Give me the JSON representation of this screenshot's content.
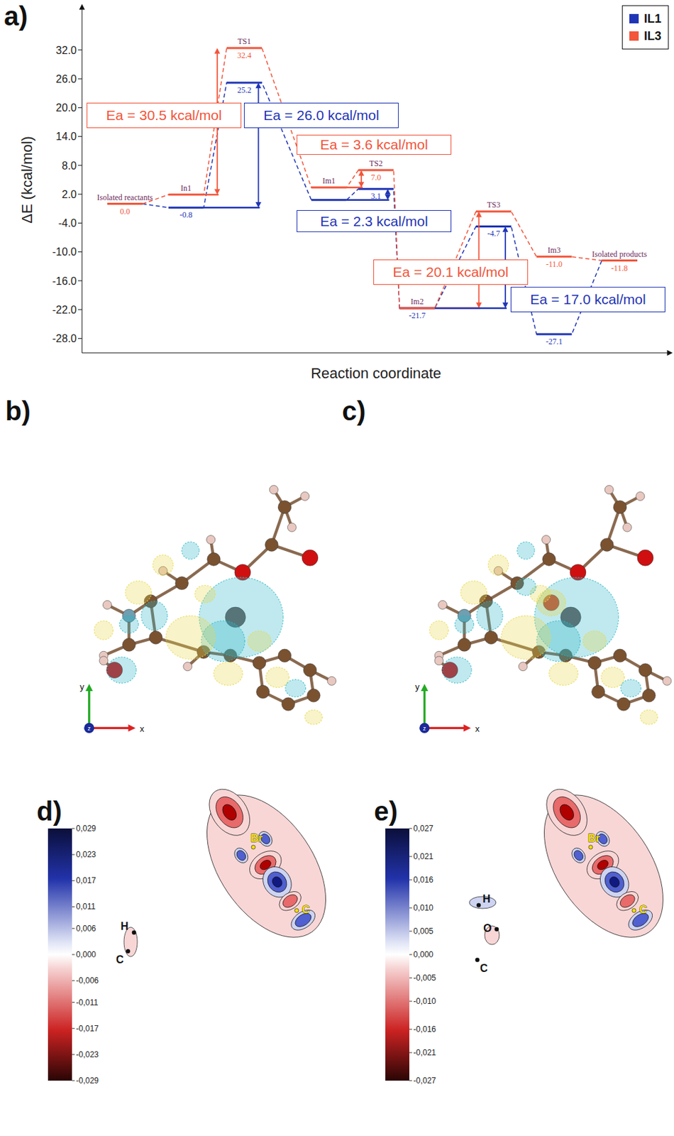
{
  "panel_label": "a)",
  "chart_data": {
    "type": "line",
    "categories": [
      "Isolated reactants",
      "In1",
      "TS1",
      "Im1",
      "TS2",
      "Im2",
      "TS3",
      "Im3",
      "Isolated products"
    ],
    "series": [
      {
        "name": "IL1",
        "color": "#1f35b5",
        "values": [
          0.0,
          -0.8,
          25.2,
          0.8,
          3.1,
          -21.7,
          -4.7,
          -27.1,
          -11.8
        ],
        "value_labels": [
          null,
          "-0.8",
          "25.2",
          null,
          "3.1",
          "-21.7",
          "-4.7",
          "-27.1",
          null
        ]
      },
      {
        "name": "IL3",
        "color": "#f2553a",
        "values": [
          0.0,
          1.9,
          32.4,
          3.4,
          7.0,
          -21.7,
          -1.6,
          -11.0,
          -11.8
        ],
        "value_labels": [
          "0.0",
          null,
          "32.4",
          null,
          "7.0",
          null,
          null,
          "-11.0",
          "-11.8"
        ]
      }
    ],
    "xlabel": "Reaction coordinate",
    "ylabel": "ΔE (kcal/mol)",
    "ylim": [
      -31,
      41
    ],
    "yticks": [
      {
        "value": -28,
        "label": "-28.0"
      },
      {
        "value": -22,
        "label": "-22.0"
      },
      {
        "value": -16,
        "label": "-16.0"
      },
      {
        "value": -10,
        "label": "-10.0"
      },
      {
        "value": -4,
        "label": "-4.0"
      },
      {
        "value": 2,
        "label": "2.0"
      },
      {
        "value": 8,
        "label": "8.0"
      },
      {
        "value": 14,
        "label": "14.0"
      },
      {
        "value": 20,
        "label": "20.0"
      },
      {
        "value": 26,
        "label": "26.0"
      },
      {
        "value": 32,
        "label": "32.0"
      }
    ],
    "legend": "upper right",
    "line_style": "dashed",
    "data_labels": true,
    "annotations": [
      {
        "text": "Ea = 30.5 kcal/mol",
        "series": "IL3",
        "from": "In1",
        "to": "TS1"
      },
      {
        "text": "Ea = 26.0 kcal/mol",
        "series": "IL1",
        "from": "In1",
        "to": "TS1"
      },
      {
        "text": "Ea = 3.6 kcal/mol",
        "series": "IL3",
        "from": "Im1",
        "to": "TS2"
      },
      {
        "text": "Ea = 2.3 kcal/mol",
        "series": "IL1",
        "from": "Im1",
        "to": "TS2"
      },
      {
        "text": "Ea = 20.1 kcal/mol",
        "series": "IL3",
        "from": "Im2",
        "to": "TS3"
      },
      {
        "text": "Ea = 17.0 kcal/mol",
        "series": "IL1",
        "from": "Im2",
        "to": "TS3"
      }
    ]
  },
  "panels": [
    {
      "label": "b)",
      "axes": [
        "y",
        "x",
        "z"
      ]
    },
    {
      "label": "c)",
      "axes": [
        "y",
        "x",
        "z"
      ]
    },
    {
      "label": "d)",
      "colorbar": {
        "lim": [
          -0.029,
          0.029
        ],
        "ticks": [
          {
            "value": 0.029,
            "label": "0,029"
          },
          {
            "value": 0.023,
            "label": "0,023"
          },
          {
            "value": 0.017,
            "label": "0,017"
          },
          {
            "value": 0.011,
            "label": "0,011"
          },
          {
            "value": 0.006,
            "label": "0,006"
          },
          {
            "value": 0,
            "label": "0,000"
          },
          {
            "value": -0.006,
            "label": "-0,006"
          },
          {
            "value": -0.011,
            "label": "-0,011"
          },
          {
            "value": -0.017,
            "label": "-0,017"
          },
          {
            "value": -0.023,
            "label": "-0,023"
          },
          {
            "value": -0.029,
            "label": "-0,029"
          }
        ]
      },
      "atoms": [
        "Br",
        "C",
        "H",
        "C"
      ]
    },
    {
      "label": "e)",
      "colorbar": {
        "lim": [
          -0.027,
          0.027
        ],
        "ticks": [
          {
            "value": 0.027,
            "label": "0,027"
          },
          {
            "value": 0.021,
            "label": "0,021"
          },
          {
            "value": 0.016,
            "label": "0,016"
          },
          {
            "value": 0.01,
            "label": "0,010"
          },
          {
            "value": 0.005,
            "label": "0,005"
          },
          {
            "value": 0,
            "label": "0,000"
          },
          {
            "value": -0.005,
            "label": "-0,005"
          },
          {
            "value": -0.01,
            "label": "-0,010"
          },
          {
            "value": -0.016,
            "label": "-0,016"
          },
          {
            "value": -0.021,
            "label": "-0,021"
          },
          {
            "value": -0.027,
            "label": "-0,027"
          }
        ]
      },
      "atoms": [
        "Br",
        "C",
        "H",
        "O",
        "C"
      ]
    }
  ]
}
